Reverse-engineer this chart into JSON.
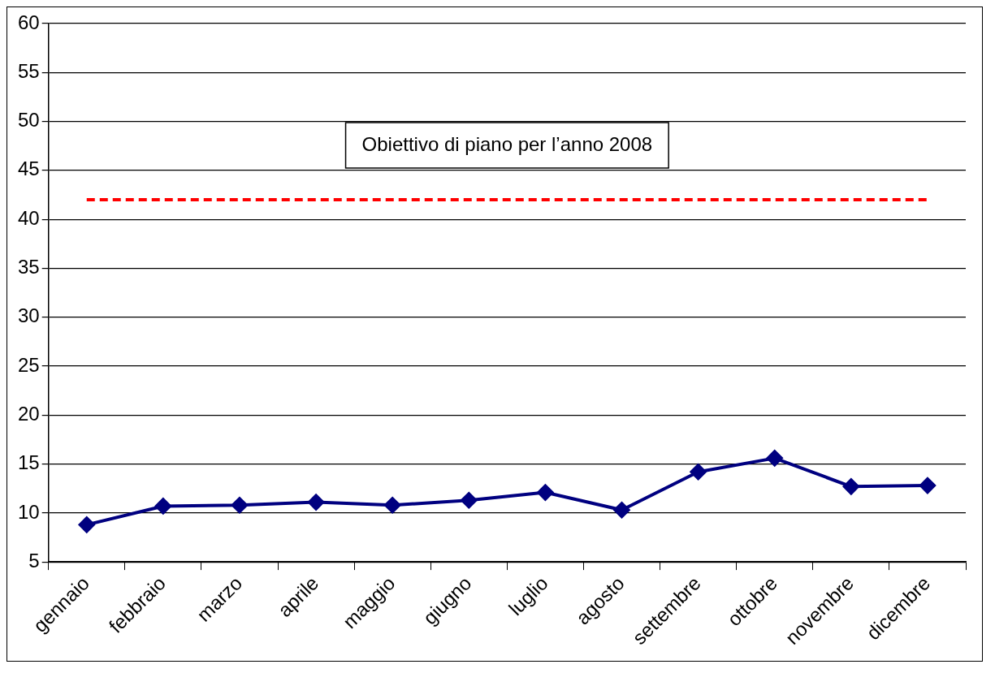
{
  "chart_data": {
    "type": "line",
    "categories": [
      "gennaio",
      "febbraio",
      "marzo",
      "aprile",
      "maggio",
      "giugno",
      "luglio",
      "agosto",
      "settembre",
      "ottobre",
      "novembre",
      "dicembre"
    ],
    "series": [
      {
        "color": "#000080",
        "values": [
          8.8,
          10.7,
          10.8,
          11.1,
          10.8,
          11.3,
          12.1,
          10.3,
          14.2,
          15.6,
          12.7,
          12.8
        ]
      }
    ],
    "ylim": [
      5,
      60
    ],
    "yticks": [
      5,
      10,
      15,
      20,
      25,
      30,
      35,
      40,
      45,
      50,
      55,
      60
    ],
    "grid": "y",
    "marker": "diamond",
    "line_style": "solid",
    "legend": false,
    "ref_lines": [
      {
        "axis": "y",
        "value": 42,
        "label": "Obiettivo di piano per l’anno 2008",
        "color": "#ff0000",
        "line_style": "dashed"
      }
    ]
  }
}
